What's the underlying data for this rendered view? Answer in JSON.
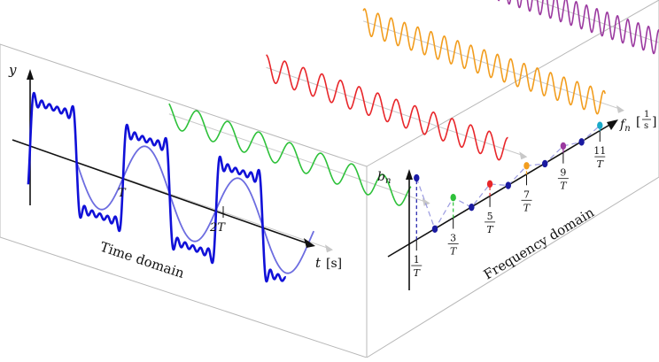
{
  "time_panel": {
    "caption": "Time domain",
    "y_label": "y",
    "t_label": "t",
    "t_unit": "[s]",
    "tick_T": "T",
    "tick_2T": "2T"
  },
  "freq_panel": {
    "caption": "Frequency domain",
    "b_label": "b",
    "b_sub": "n",
    "f_label": "f",
    "f_sub": "n",
    "unit_num": "1",
    "unit_den": "s",
    "tick_labels": [
      {
        "num": "1",
        "den": "T"
      },
      {
        "num": "3",
        "den": "T"
      },
      {
        "num": "5",
        "den": "T"
      },
      {
        "num": "7",
        "den": "T"
      },
      {
        "num": "9",
        "den": "T"
      },
      {
        "num": "11",
        "den": "T"
      }
    ]
  },
  "harmonics": [
    {
      "n": 1,
      "amplitude": 1.0,
      "color": "#1a1aa8"
    },
    {
      "n": 3,
      "amplitude": 0.333,
      "color": "#2ec13a"
    },
    {
      "n": 5,
      "amplitude": 0.2,
      "color": "#e8262a"
    },
    {
      "n": 7,
      "amplitude": 0.143,
      "color": "#f29d1e"
    },
    {
      "n": 9,
      "amplitude": 0.111,
      "color": "#9b3aa0"
    },
    {
      "n": 11,
      "amplitude": 0.091,
      "color": "#1aa9c9"
    }
  ],
  "colors": {
    "square_wave": "#1010d8",
    "fundamental": "#6d6de0",
    "panel_edge": "#b8b8b8",
    "axis": "#111111",
    "guide": "#c8c8c8",
    "dot_even": "#1a1aa0"
  }
}
